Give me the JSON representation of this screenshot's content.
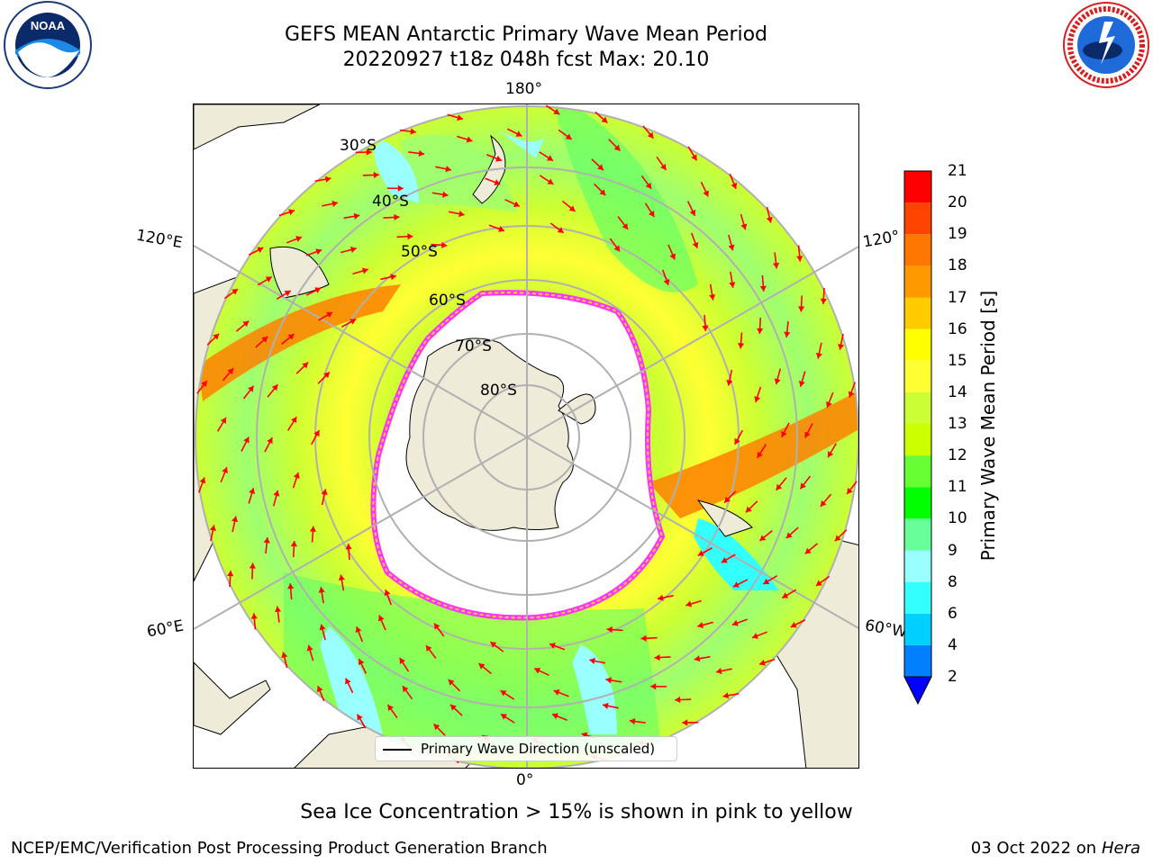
{
  "header": {
    "title_line1": "GEFS MEAN Antarctic Primary Wave Mean Period",
    "title_line2": "20220927 t18z 048h fcst   Max: 20.10"
  },
  "logos": {
    "noaa": {
      "text": "NOAA",
      "ring_text": "NATIONAL OCEANIC AND ATMOSPHERIC ADMINISTRATION · U.S. DEPARTMENT OF COMMERCE"
    },
    "nws": {
      "ring_text": "NATIONAL WEATHER SERVICE"
    }
  },
  "map": {
    "projection": "south-polar-stereographic",
    "longitude_labels": {
      "top": "180°",
      "left_upper": "120°E",
      "left_lower": "60°E",
      "right_upper": "120°",
      "right_lower": "60°W",
      "bottom": "0°"
    },
    "latitude_labels": [
      "30°S",
      "40°S",
      "50°S",
      "60°S",
      "70°S",
      "80°S"
    ],
    "legend": "Primary Wave Direction (unscaled)",
    "arrow_color": "#ff0000",
    "ice_edge_colors": [
      "#ff33ff",
      "#ffcc33"
    ],
    "land_color": "#efebd9",
    "ocean_gradient": [
      "#9fff80",
      "#ccff33",
      "#ffff33",
      "#ffcc33",
      "#ff8000",
      "#66ff66",
      "#99ffff",
      "#33ffff"
    ]
  },
  "colorbar": {
    "label": "Primary Wave Mean Period [s]",
    "ticks": [
      "2",
      "4",
      "6",
      "8",
      "9",
      "10",
      "11",
      "12",
      "13",
      "14",
      "15",
      "16",
      "17",
      "18",
      "19",
      "20",
      "21"
    ],
    "colors": [
      "#0080ff",
      "#00d0ff",
      "#33ffff",
      "#99ffff",
      "#66ff99",
      "#00ff00",
      "#66ff33",
      "#ccff00",
      "#ccff33",
      "#ffff33",
      "#ffff00",
      "#ffcc00",
      "#ff9900",
      "#ff7700",
      "#ff4400",
      "#ff0000"
    ],
    "underflow_color": "#0000ff"
  },
  "note": "Sea Ice Concentration > 15% is shown in pink to yellow",
  "footer": {
    "left": "NCEP/EMC/Verification Post Processing Product Generation Branch",
    "date": "03 Oct 2022 on ",
    "machine": "Hera"
  }
}
